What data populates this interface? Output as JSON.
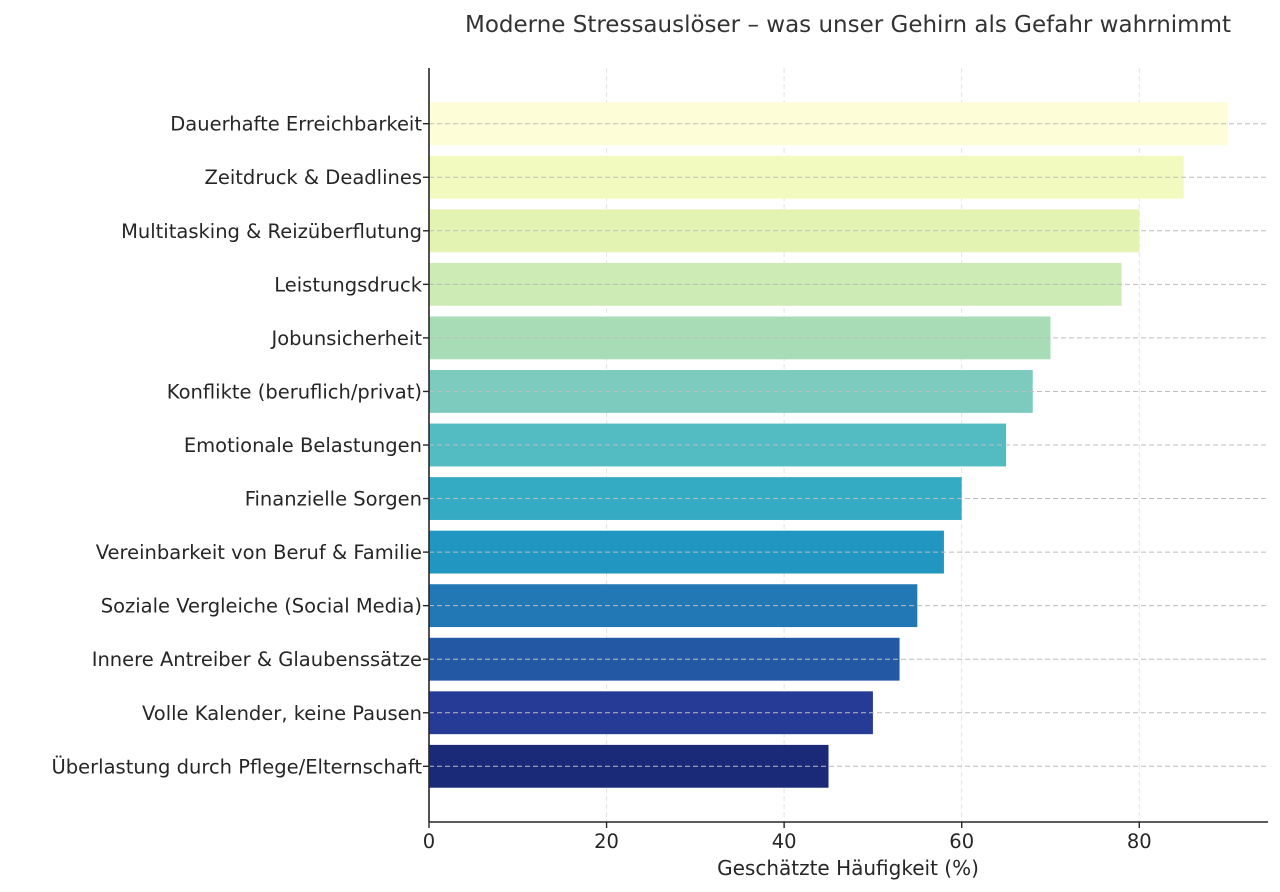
{
  "chart_data": {
    "type": "bar",
    "orientation": "horizontal",
    "title": "Moderne Stressauslöser – was unser Gehirn als Gefahr wahrnimmt",
    "xlabel": "Geschätzte Häufigkeit (%)",
    "ylabel": "",
    "xlim": [
      0,
      94.5
    ],
    "xticks": [
      0,
      20,
      40,
      60,
      80
    ],
    "grid": true,
    "categories": [
      "Dauerhafte Erreichbarkeit",
      "Zeitdruck & Deadlines",
      "Multitasking & Reizüberflutung",
      "Leistungsdruck",
      "Jobunsicherheit",
      "Konflikte (beruflich/privat)",
      "Emotionale Belastungen",
      "Finanzielle Sorgen",
      "Vereinbarkeit von Beruf & Familie",
      "Soziale Vergleiche (Social Media)",
      "Innere Antreiber & Glaubenssätze",
      "Volle Kalender, keine Pausen",
      "Überlastung durch Pflege/Elternschaft"
    ],
    "values": [
      90,
      85,
      80,
      78,
      70,
      68,
      65,
      60,
      58,
      55,
      53,
      50,
      45
    ],
    "colors": [
      "#fdfed7",
      "#f2fabf",
      "#e3f4b2",
      "#cdebb4",
      "#a8dcb6",
      "#7ccbbe",
      "#53bcc2",
      "#35abc3",
      "#2196c1",
      "#2178b4",
      "#2358a5",
      "#253b96",
      "#1a2a78"
    ]
  }
}
